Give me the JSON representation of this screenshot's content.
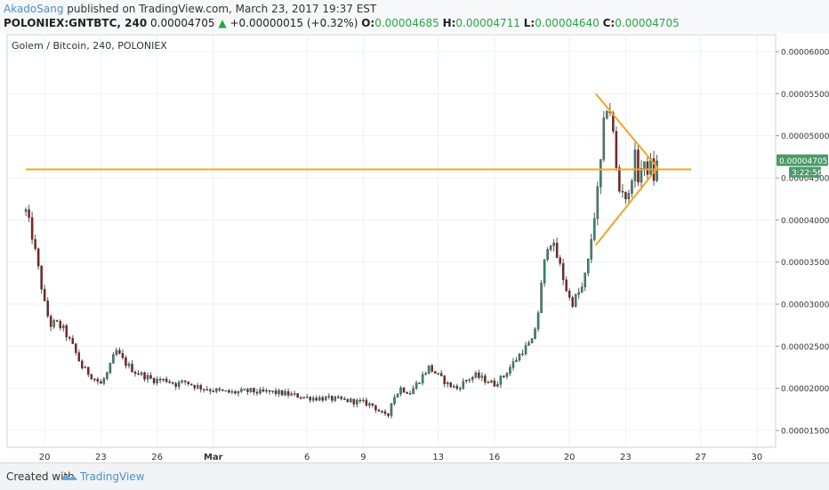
{
  "header": {
    "author": "AkadoSang",
    "published_text": " published on TradingView.com, March 23, 2017 19:37 EST",
    "symbol": "POLONIEX:GNTBTC, 240",
    "last": "0.00004705",
    "change_arrow": "▲",
    "change": "+0.00000015 (+0.32%)",
    "open_label": "O:",
    "open": "0.00004685",
    "high_label": "H:",
    "high": "0.00004711",
    "low_label": "L:",
    "low": "0.00004640",
    "close_label": "C:",
    "close": "0.00004705"
  },
  "footer": {
    "created_with": "Created with",
    "brand": "TradingView"
  },
  "colors": {
    "up": "#3a8a6e",
    "down": "#8a1f1f",
    "trendline": "#f5a623",
    "price_badge": "#4a9a6a",
    "timer_badge": "#4a9a6a",
    "axis_text": "#333333"
  },
  "chart_data": {
    "type": "candlestick",
    "title": "Golem / Bitcoin, 240, POLONIEX",
    "y_axis": {
      "min": 1.3e-05,
      "max": 6.2e-05,
      "ticks": [
        "0.00001500",
        "0.00002000",
        "0.00002500",
        "0.00003000",
        "0.00003500",
        "0.00004000",
        "0.00004500",
        "0.00005000",
        "0.00005500",
        "0.00006000"
      ]
    },
    "x_axis": {
      "ticks": [
        {
          "label": "20",
          "day": 1
        },
        {
          "label": "23",
          "day": 4
        },
        {
          "label": "26",
          "day": 7
        },
        {
          "label": "Mar",
          "day": 10
        },
        {
          "label": "6",
          "day": 15
        },
        {
          "label": "9",
          "day": 18
        },
        {
          "label": "13",
          "day": 22
        },
        {
          "label": "16",
          "day": 25
        },
        {
          "label": "20",
          "day": 29
        },
        {
          "label": "23",
          "day": 32
        },
        {
          "label": "27",
          "day": 36
        },
        {
          "label": "30",
          "day": 39
        }
      ]
    },
    "current_price_label": "0.00004705",
    "timer_label": "3:22:56",
    "close_path": [
      [
        0.0,
        4.1e-05
      ],
      [
        0.3,
        3.85e-05
      ],
      [
        0.6,
        3.5e-05
      ],
      [
        1.0,
        3e-05
      ],
      [
        1.3,
        2.75e-05
      ],
      [
        1.6,
        2.78e-05
      ],
      [
        2.0,
        2.7e-05
      ],
      [
        2.5,
        2.5e-05
      ],
      [
        3.0,
        2.25e-05
      ],
      [
        3.5,
        2.15e-05
      ],
      [
        4.0,
        2.05e-05
      ],
      [
        4.4,
        2.2e-05
      ],
      [
        4.8,
        2.45e-05
      ],
      [
        5.3,
        2.3e-05
      ],
      [
        5.8,
        2.2e-05
      ],
      [
        6.3,
        2.15e-05
      ],
      [
        6.8,
        2.1e-05
      ],
      [
        7.5,
        2.1e-05
      ],
      [
        8.0,
        2.05e-05
      ],
      [
        8.5,
        2.08e-05
      ],
      [
        9.0,
        2.03e-05
      ],
      [
        9.5,
        2e-05
      ],
      [
        10.0,
        1.98e-05
      ],
      [
        10.5,
        1.96e-05
      ],
      [
        11.0,
        1.95e-05
      ],
      [
        12.0,
        1.97e-05
      ],
      [
        12.5,
        1.95e-05
      ],
      [
        13.0,
        1.96e-05
      ],
      [
        14.0,
        1.93e-05
      ],
      [
        15.0,
        1.89e-05
      ],
      [
        16.0,
        1.88e-05
      ],
      [
        17.0,
        1.86e-05
      ],
      [
        18.0,
        1.83e-05
      ],
      [
        18.5,
        1.8e-05
      ],
      [
        19.0,
        1.7e-05
      ],
      [
        19.3,
        1.65e-05
      ],
      [
        19.5,
        1.85e-05
      ],
      [
        20.0,
        2e-05
      ],
      [
        20.5,
        1.95e-05
      ],
      [
        21.0,
        2.1e-05
      ],
      [
        21.5,
        2.25e-05
      ],
      [
        22.0,
        2.15e-05
      ],
      [
        22.5,
        2.05e-05
      ],
      [
        23.0,
        2e-05
      ],
      [
        23.5,
        2.1e-05
      ],
      [
        24.0,
        2.15e-05
      ],
      [
        24.5,
        2.1e-05
      ],
      [
        25.0,
        2.05e-05
      ],
      [
        25.5,
        2.15e-05
      ],
      [
        26.0,
        2.3e-05
      ],
      [
        26.5,
        2.45e-05
      ],
      [
        27.0,
        2.55e-05
      ],
      [
        27.3,
        2.85e-05
      ],
      [
        27.6,
        3.4e-05
      ],
      [
        27.9,
        3.8e-05
      ],
      [
        28.2,
        3.65e-05
      ],
      [
        28.5,
        3.45e-05
      ],
      [
        28.8,
        3.2e-05
      ],
      [
        29.1,
        3e-05
      ],
      [
        29.4,
        3.1e-05
      ],
      [
        29.7,
        3.2e-05
      ],
      [
        30.0,
        3.5e-05
      ],
      [
        30.3,
        4e-05
      ],
      [
        30.6,
        4.5e-05
      ],
      [
        30.9,
        5.3e-05
      ],
      [
        31.1,
        5.4e-05
      ],
      [
        31.3,
        5.1e-05
      ],
      [
        31.5,
        4.6e-05
      ],
      [
        31.7,
        4.3e-05
      ],
      [
        31.9,
        4.4e-05
      ],
      [
        32.1,
        4.15e-05
      ],
      [
        32.3,
        4.5e-05
      ],
      [
        32.5,
        4.75e-05
      ],
      [
        32.7,
        4.45e-05
      ],
      [
        32.9,
        4.7e-05
      ],
      [
        33.1,
        4.55e-05
      ],
      [
        33.3,
        4.7e-05
      ],
      [
        33.5,
        4.5e-05
      ],
      [
        33.7,
        4.7e-05
      ]
    ],
    "horizontal_lines": [
      {
        "price": 4.6e-05,
        "day_from": 0.0,
        "day_to": 35.5
      }
    ],
    "trendlines": [
      {
        "from_day": 30.4,
        "from_price": 5.5e-05,
        "to_day": 33.7,
        "to_price": 4.62e-05
      },
      {
        "from_day": 30.4,
        "from_price": 3.7e-05,
        "to_day": 33.7,
        "to_price": 4.62e-05
      }
    ]
  }
}
